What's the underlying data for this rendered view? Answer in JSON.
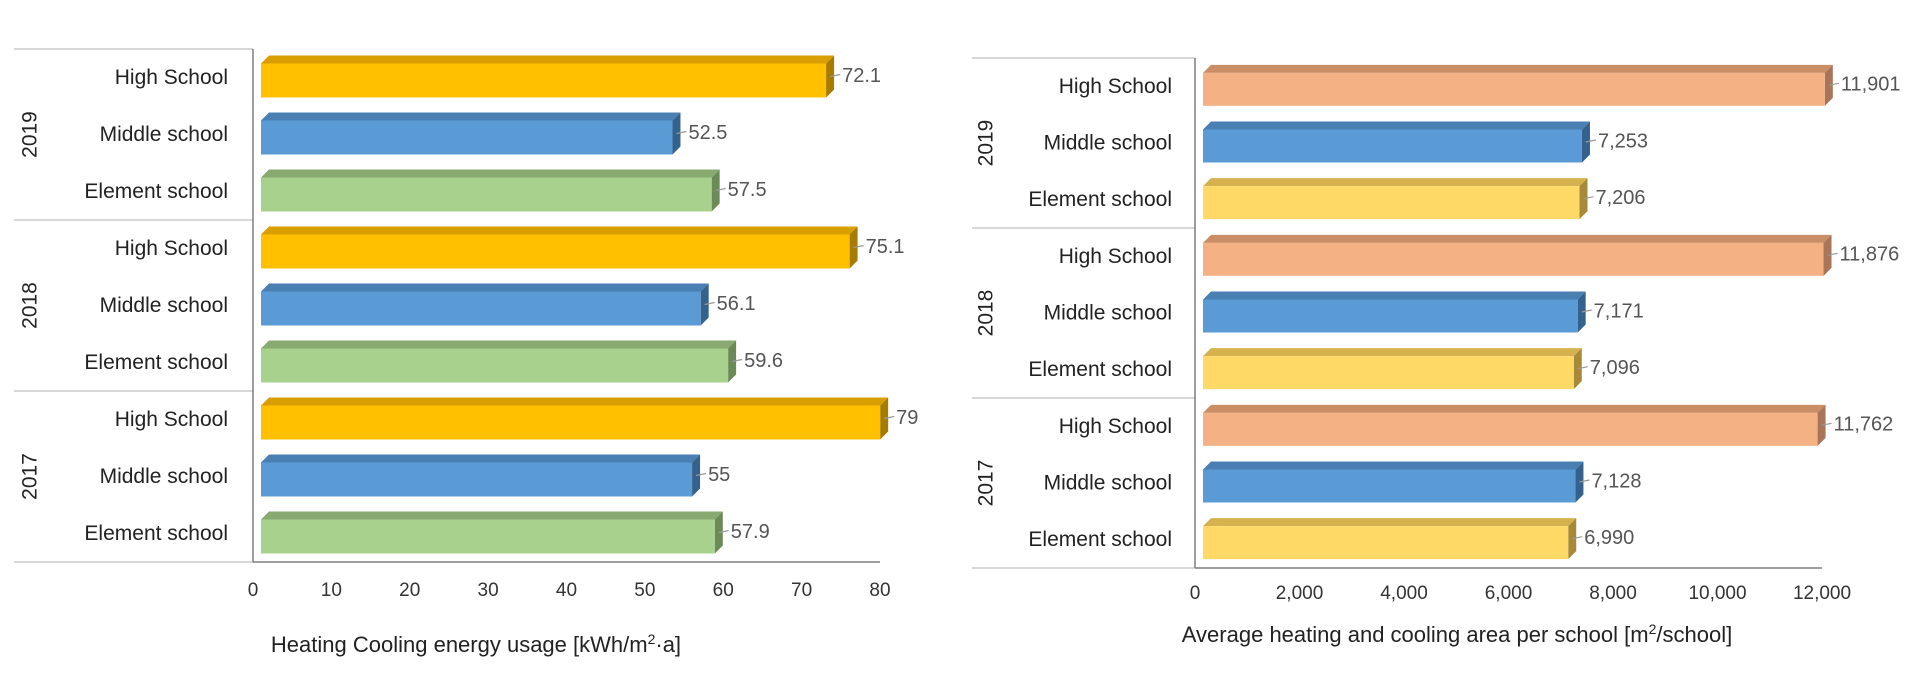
{
  "chart_data": [
    {
      "type": "bar",
      "orientation": "horizontal",
      "title": "",
      "xlabel": "Heating Cooling energy usage [kWh/m²·a]",
      "xlabel_parts": {
        "pre": "Heating Cooling energy usage [kWh/m",
        "sup": "2",
        "post": "·a]"
      },
      "xlim": [
        0,
        80
      ],
      "xticks": [
        0,
        10,
        20,
        30,
        40,
        50,
        60,
        70,
        80
      ],
      "tick_format": "plain",
      "groups": [
        {
          "year": "2019",
          "bars": [
            {
              "category": "High School",
              "value": 72.1,
              "label": "72.1"
            },
            {
              "category": "Middle school",
              "value": 52.5,
              "label": "52.5"
            },
            {
              "category": "Element school",
              "value": 57.5,
              "label": "57.5"
            }
          ]
        },
        {
          "year": "2018",
          "bars": [
            {
              "category": "High School",
              "value": 75.1,
              "label": "75.1"
            },
            {
              "category": "Middle school",
              "value": 56.1,
              "label": "56.1"
            },
            {
              "category": "Element school",
              "value": 59.6,
              "label": "59.6"
            }
          ]
        },
        {
          "year": "2017",
          "bars": [
            {
              "category": "High School",
              "value": 79,
              "label": "79"
            },
            {
              "category": "Middle school",
              "value": 55,
              "label": "55"
            },
            {
              "category": "Element school",
              "value": 57.9,
              "label": "57.9"
            }
          ]
        }
      ],
      "colors": {
        "High School": {
          "front": "#ffc000",
          "top": "#d99e00",
          "side": "#a67c00"
        },
        "Middle school": {
          "front": "#5b9bd5",
          "top": "#4a7fb3",
          "side": "#35628c"
        },
        "Element school": {
          "front": "#a9d18e",
          "top": "#88aa70",
          "side": "#6b8a55"
        }
      }
    },
    {
      "type": "bar",
      "orientation": "horizontal",
      "title": "",
      "xlabel": "Average heating and cooling area per school [m²/school]",
      "xlabel_parts": {
        "pre": "Average heating and cooling area per school [m",
        "sup": "2",
        "post": "/school]"
      },
      "xlim": [
        0,
        12000
      ],
      "xticks": [
        0,
        2000,
        4000,
        6000,
        8000,
        10000,
        12000
      ],
      "tick_format": "comma",
      "groups": [
        {
          "year": "2019",
          "bars": [
            {
              "category": "High School",
              "value": 11901,
              "label": "11,901"
            },
            {
              "category": "Middle school",
              "value": 7253,
              "label": "7,253"
            },
            {
              "category": "Element school",
              "value": 7206,
              "label": "7,206"
            }
          ]
        },
        {
          "year": "2018",
          "bars": [
            {
              "category": "High School",
              "value": 11876,
              "label": "11,876"
            },
            {
              "category": "Middle school",
              "value": 7171,
              "label": "7,171"
            },
            {
              "category": "Element school",
              "value": 7096,
              "label": "7,096"
            }
          ]
        },
        {
          "year": "2017",
          "bars": [
            {
              "category": "High School",
              "value": 11762,
              "label": "11,762"
            },
            {
              "category": "Middle school",
              "value": 7128,
              "label": "7,128"
            },
            {
              "category": "Element school",
              "value": 6990,
              "label": "6,990"
            }
          ]
        }
      ],
      "colors": {
        "High School": {
          "front": "#f4b183",
          "top": "#c98e66",
          "side": "#a8755a"
        },
        "Middle school": {
          "front": "#5b9bd5",
          "top": "#4a7fb3",
          "side": "#35628c"
        },
        "Element school": {
          "front": "#ffd966",
          "top": "#d6b24f",
          "side": "#a8893a"
        }
      }
    }
  ]
}
